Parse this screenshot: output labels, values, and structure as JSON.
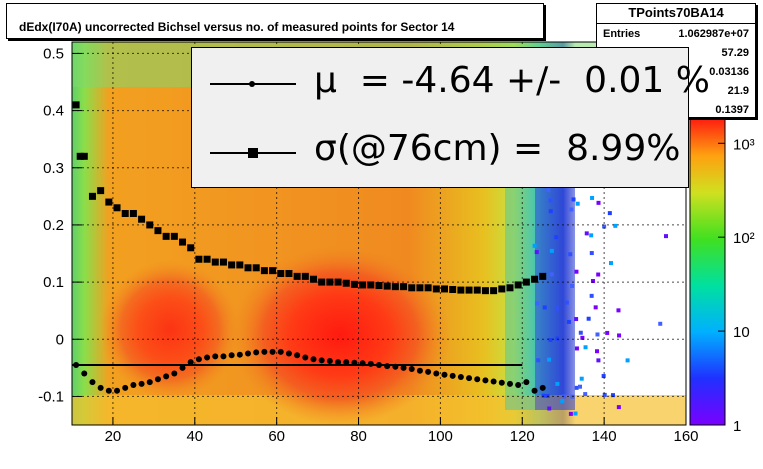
{
  "title": "dEdx(I70A) uncorrected Bichsel versus no. of measured points for Sector 14",
  "stats": {
    "name": "TPoints70BA14",
    "entries_label": "Entries",
    "entries_value": "1.062987e+07",
    "values": [
      "57.29",
      "0.03136",
      "21.9",
      "0.1397"
    ]
  },
  "legend": {
    "mu_text": "μ  = -4.64 +/-  0.01 %",
    "sigma_text": "σ(@76cm) =  8.99%"
  },
  "chart_data": {
    "type": "heatmap",
    "title": "dEdx(I70A) uncorrected Bichsel versus no. of measured points for Sector 14",
    "xlim": [
      10,
      160
    ],
    "ylim": [
      -0.15,
      0.52
    ],
    "x_ticks": [
      20,
      40,
      60,
      80,
      100,
      120,
      140,
      160
    ],
    "y_ticks": [
      -0.1,
      0,
      0.1,
      0.2,
      0.3,
      0.4,
      0.5
    ],
    "y_tick_labels": [
      "-0.1",
      "0",
      "0.1",
      "0.2",
      "0.3",
      "0.4",
      "0.5"
    ],
    "grid": true,
    "colorbar": {
      "scale": "log",
      "min": 1,
      "max": 2000,
      "ticks": [
        1,
        10,
        100,
        1000
      ],
      "tick_labels": [
        "1",
        "10",
        "10²",
        "10³"
      ]
    },
    "series": [
      {
        "name": "mean",
        "x": [
          11,
          13,
          15,
          17,
          19,
          21,
          23,
          25,
          27,
          29,
          31,
          33,
          35,
          37,
          39,
          41,
          43,
          45,
          47,
          49,
          51,
          53,
          55,
          57,
          59,
          61,
          63,
          65,
          67,
          69,
          71,
          73,
          75,
          77,
          79,
          81,
          83,
          85,
          87,
          89,
          91,
          93,
          95,
          97,
          99,
          101,
          103,
          105,
          107,
          109,
          111,
          113,
          115,
          117,
          119,
          121,
          123,
          125
        ],
        "y": [
          -0.045,
          -0.06,
          -0.075,
          -0.085,
          -0.09,
          -0.09,
          -0.085,
          -0.08,
          -0.078,
          -0.075,
          -0.07,
          -0.065,
          -0.06,
          -0.05,
          -0.04,
          -0.035,
          -0.032,
          -0.03,
          -0.03,
          -0.028,
          -0.027,
          -0.025,
          -0.023,
          -0.022,
          -0.022,
          -0.022,
          -0.025,
          -0.028,
          -0.032,
          -0.035,
          -0.037,
          -0.038,
          -0.04,
          -0.04,
          -0.041,
          -0.042,
          -0.043,
          -0.045,
          -0.047,
          -0.048,
          -0.05,
          -0.052,
          -0.055,
          -0.057,
          -0.06,
          -0.062,
          -0.064,
          -0.066,
          -0.068,
          -0.07,
          -0.072,
          -0.074,
          -0.076,
          -0.078,
          -0.08,
          -0.075,
          -0.09,
          -0.085
        ]
      },
      {
        "name": "sigma",
        "x": [
          11,
          12,
          13,
          15,
          17,
          19,
          21,
          23,
          25,
          27,
          29,
          31,
          33,
          35,
          37,
          39,
          41,
          43,
          45,
          47,
          49,
          51,
          53,
          55,
          57,
          59,
          61,
          63,
          65,
          67,
          69,
          71,
          73,
          75,
          77,
          79,
          81,
          83,
          85,
          87,
          89,
          91,
          93,
          95,
          97,
          99,
          101,
          103,
          105,
          107,
          109,
          111,
          113,
          115,
          117,
          119,
          121,
          123,
          125
        ],
        "y": [
          0.41,
          0.32,
          0.32,
          0.25,
          0.26,
          0.24,
          0.23,
          0.22,
          0.22,
          0.21,
          0.2,
          0.19,
          0.18,
          0.18,
          0.17,
          0.16,
          0.14,
          0.14,
          0.135,
          0.135,
          0.13,
          0.13,
          0.125,
          0.125,
          0.12,
          0.12,
          0.115,
          0.115,
          0.11,
          0.11,
          0.105,
          0.1,
          0.1,
          0.1,
          0.098,
          0.096,
          0.095,
          0.095,
          0.094,
          0.093,
          0.092,
          0.092,
          0.09,
          0.09,
          0.09,
          0.088,
          0.088,
          0.087,
          0.086,
          0.086,
          0.086,
          0.085,
          0.085,
          0.088,
          0.09,
          0.095,
          0.1,
          0.105,
          0.11
        ]
      },
      {
        "name": "reference",
        "x": [
          10,
          120
        ],
        "y": [
          -0.045,
          -0.045
        ]
      }
    ]
  }
}
